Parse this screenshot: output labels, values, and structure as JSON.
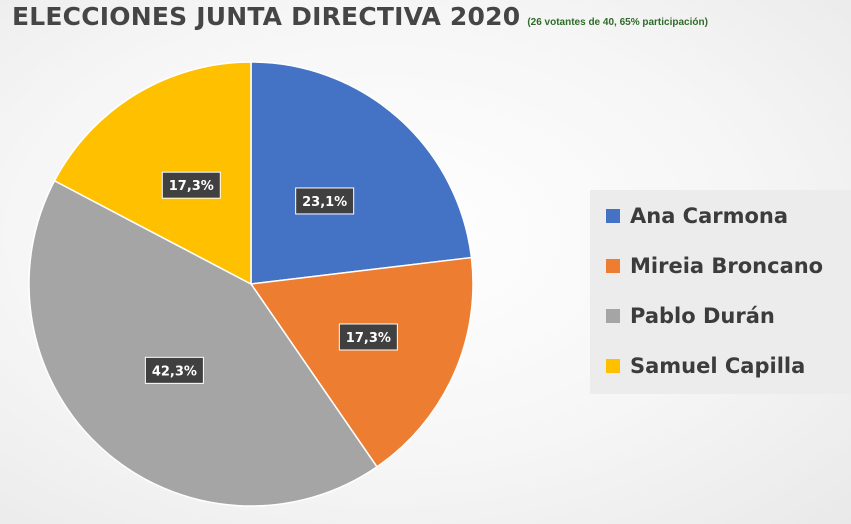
{
  "header": {
    "title": "ELECCIONES JUNTA DIRECTIVA 2020",
    "subtitle": "(26 votantes de 40, 65% participación)"
  },
  "chart_data": {
    "type": "pie",
    "title": "ELECCIONES JUNTA DIRECTIVA 2020",
    "subtitle": "(26 votantes de 40, 65% participación)",
    "legend_position": "right",
    "slices": [
      {
        "label": "Ana Carmona",
        "value": 23.1,
        "data_label": "23,1%",
        "color": "#4472c4"
      },
      {
        "label": "Mireia Broncano",
        "value": 17.3,
        "data_label": "17,3%",
        "color": "#ed7d31"
      },
      {
        "label": "Pablo Durán",
        "value": 42.3,
        "data_label": "42,3%",
        "color": "#a5a5a5"
      },
      {
        "label": "Samuel Capilla",
        "value": 17.3,
        "data_label": "17,3%",
        "color": "#ffc000"
      }
    ]
  }
}
